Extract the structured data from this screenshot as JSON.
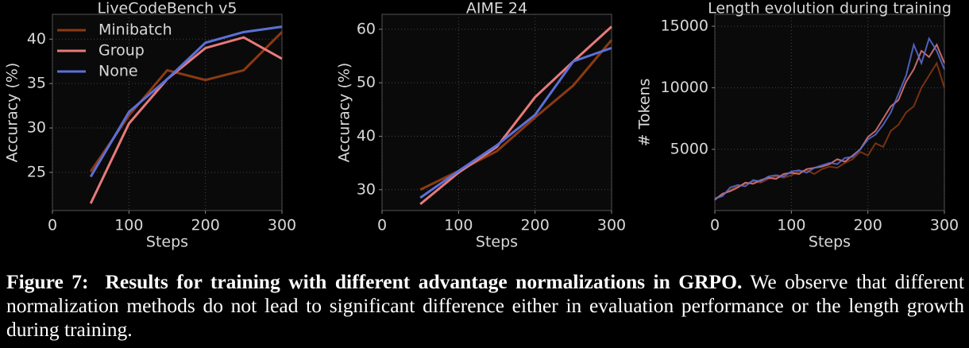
{
  "chart_data": [
    {
      "type": "line",
      "title": "LiveCodeBench v5",
      "xlabel": "Steps",
      "ylabel": "Accuracy (%)",
      "x": [
        50,
        100,
        150,
        200,
        250,
        300
      ],
      "xlim": [
        0,
        300
      ],
      "xticks": [
        0,
        100,
        200,
        300
      ],
      "ylim": [
        20.7,
        42.8
      ],
      "yticks": [
        25,
        30,
        35,
        40
      ],
      "grid": true,
      "legend": "upper left",
      "series": [
        {
          "name": "Minibatch",
          "color": "#8b3a12",
          "values": [
            25.1,
            31.4,
            36.5,
            35.4,
            36.5,
            40.8
          ]
        },
        {
          "name": "Group",
          "color": "#e87a7a",
          "values": [
            21.5,
            30.5,
            35.5,
            39.0,
            40.2,
            37.8
          ]
        },
        {
          "name": "None",
          "color": "#5b70d8",
          "values": [
            24.5,
            31.8,
            35.5,
            39.6,
            40.8,
            41.4
          ]
        }
      ]
    },
    {
      "type": "line",
      "title": "AIME 24",
      "xlabel": "Steps",
      "ylabel": "Accuracy (%)",
      "x": [
        50,
        100,
        150,
        200,
        250,
        300
      ],
      "xlim": [
        0,
        300
      ],
      "xticks": [
        0,
        100,
        200,
        300
      ],
      "ylim": [
        26.1,
        62.8
      ],
      "yticks": [
        30,
        40,
        50,
        60
      ],
      "grid": true,
      "series": [
        {
          "color": "#8b3a12",
          "values": [
            30.0,
            33.5,
            37.2,
            43.5,
            49.5,
            58.0
          ]
        },
        {
          "color": "#e87a7a",
          "values": [
            27.3,
            33.2,
            38.0,
            47.3,
            54.0,
            60.5
          ]
        },
        {
          "color": "#5b70d8",
          "values": [
            28.5,
            33.5,
            38.3,
            44.0,
            54.0,
            56.5
          ]
        }
      ]
    },
    {
      "type": "line",
      "title": "Length evolution during training",
      "xlabel": "Steps",
      "ylabel": "# Tokens",
      "x": [
        0,
        10,
        20,
        30,
        40,
        50,
        60,
        70,
        80,
        90,
        100,
        110,
        120,
        130,
        140,
        150,
        160,
        170,
        180,
        190,
        200,
        210,
        220,
        230,
        240,
        250,
        260,
        270,
        280,
        290,
        300
      ],
      "xlim": [
        0,
        300
      ],
      "xticks": [
        0,
        100,
        200,
        300
      ],
      "ylim": [
        30,
        15970
      ],
      "yticks": [
        5000,
        10000,
        15000
      ],
      "grid": true,
      "series": [
        {
          "color": "#8b3a12",
          "values": [
            1000,
            1300,
            1700,
            2000,
            2200,
            2400,
            2300,
            2600,
            2800,
            2700,
            2900,
            3200,
            3300,
            3000,
            3400,
            3600,
            3500,
            3900,
            4200,
            4800,
            4500,
            5500,
            5200,
            6500,
            7000,
            8000,
            8500,
            10000,
            11000,
            12000,
            10000
          ]
        },
        {
          "color": "#e87a7a",
          "values": [
            900,
            1400,
            1600,
            1900,
            2300,
            2200,
            2500,
            2700,
            2600,
            3000,
            3100,
            3000,
            3400,
            3500,
            3600,
            3800,
            4200,
            4000,
            4500,
            5000,
            6000,
            6500,
            7500,
            8500,
            9000,
            10500,
            11500,
            13000,
            12500,
            13500,
            12000
          ]
        },
        {
          "color": "#5b70d8",
          "values": [
            1000,
            1200,
            1900,
            2100,
            2000,
            2500,
            2400,
            2800,
            2900,
            2800,
            3200,
            3300,
            3100,
            3500,
            3700,
            3900,
            3800,
            4300,
            4400,
            5000,
            5800,
            6200,
            7000,
            8000,
            9500,
            11000,
            13500,
            12000,
            14000,
            13000,
            11500
          ]
        }
      ]
    }
  ],
  "caption": {
    "label": "Figure 7:",
    "bold": "Results for training with different advantage normalizations in GRPO.",
    "text": "We observe that different normalization methods do not lead to significant difference either in evaluation performance or the length growth during training."
  }
}
